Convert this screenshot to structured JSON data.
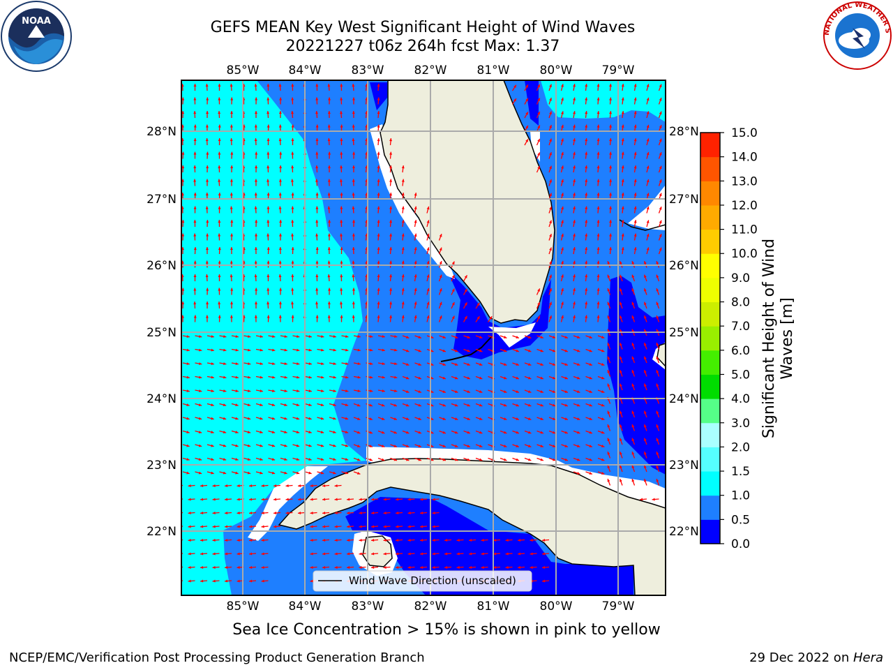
{
  "title": {
    "line1": "GEFS MEAN Key West Significant Height of Wind Waves",
    "line2": "20221227 t06z 264h fcst   Max: 1.37"
  },
  "map": {
    "lon_labels": [
      "85°W",
      "84°W",
      "83°W",
      "82°W",
      "81°W",
      "80°W",
      "79°W"
    ],
    "lat_labels": [
      "28°N",
      "27°N",
      "26°N",
      "25°N",
      "24°N",
      "23°N",
      "22°N"
    ],
    "legend_text": "Wind Wave Direction (unscaled)",
    "land_color": "#eeeedd",
    "arrow_color": "#ff0000"
  },
  "colorbar": {
    "label": "Significant Height of Wind Waves [m]",
    "ticks": [
      "0.0",
      "0.5",
      "1.0",
      "1.5",
      "2.0",
      "3.0",
      "4.0",
      "5.0",
      "6.0",
      "7.0",
      "8.0",
      "9.0",
      "10.0",
      "11.0",
      "12.0",
      "13.0",
      "14.0",
      "15.0"
    ],
    "colors": [
      "#0000ff",
      "#1e7fff",
      "#00ffff",
      "#55ffff",
      "#aaffff",
      "#55ff88",
      "#00dd00",
      "#44ee00",
      "#99ee00",
      "#ccee00",
      "#eeff00",
      "#ffff00",
      "#ffcc00",
      "#ffaa00",
      "#ff8800",
      "#ff5500",
      "#ff2200",
      "#ff0000"
    ]
  },
  "note": "Sea Ice Concentration > 15% is shown in pink to yellow",
  "footer": {
    "left": "NCEP/EMC/Verification Post Processing Product Generation Branch",
    "date": "29 Dec 2022 on ",
    "host": "Hera"
  },
  "logos": {
    "noaa_text": "NOAA",
    "nws_text": "NATIONAL WEATHER SERVICE"
  }
}
